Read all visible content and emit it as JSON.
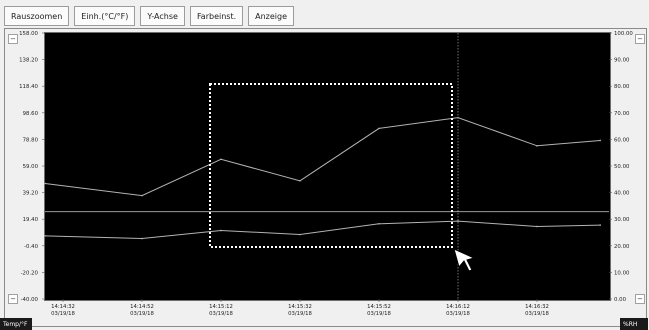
{
  "toolbar": {
    "zoom_out": "Rauszoomen",
    "units": "Einh.(°C/°F)",
    "y_axis": "Y-Achse",
    "color_settings": "Farbeinst.",
    "display": "Anzeige"
  },
  "left_axis": {
    "ticks": [
      "158.00",
      "138.20",
      "118.40",
      "98.60",
      "78.80",
      "59.00",
      "39.20",
      "19.40",
      "-0.40",
      "-20.20",
      "-40.00"
    ]
  },
  "right_axis": {
    "ticks": [
      "100.00",
      "90.00",
      "80.00",
      "70.00",
      "60.00",
      "50.00",
      "40.00",
      "30.00",
      "20.00",
      "10.00",
      "0.00"
    ]
  },
  "x_axis": {
    "ticks": [
      {
        "time": "14:14:32",
        "date": "03/19/18"
      },
      {
        "time": "14:14:52",
        "date": "03/19/18"
      },
      {
        "time": "14:15:12",
        "date": "03/19/18"
      },
      {
        "time": "14:15:32",
        "date": "03/19/18"
      },
      {
        "time": "14:15:52",
        "date": "03/19/18"
      },
      {
        "time": "14:16:12",
        "date": "03/19/18"
      },
      {
        "time": "14:16:32",
        "date": "03/19/18"
      }
    ]
  },
  "chart_data": {
    "type": "line",
    "y_left_range": [
      -40.0,
      158.0
    ],
    "y_right_range": [
      0.0,
      100.0
    ],
    "series": [
      {
        "values": [
          {
            "x": "14:14:22",
            "y": 46.0
          },
          {
            "x": "14:14:52",
            "y": 37.0
          },
          {
            "x": "14:15:12",
            "y": 64.0
          },
          {
            "x": "14:15:32",
            "y": 48.0
          },
          {
            "x": "14:15:52",
            "y": 87.0
          },
          {
            "x": "14:16:12",
            "y": 95.0
          },
          {
            "x": "14:16:32",
            "y": 74.0
          },
          {
            "x": "14:16:48",
            "y": 78.0
          }
        ]
      },
      {
        "values": [
          {
            "x": "14:14:22",
            "y": 7.0
          },
          {
            "x": "14:14:52",
            "y": 5.0
          },
          {
            "x": "14:15:12",
            "y": 11.0
          },
          {
            "x": "14:15:32",
            "y": 8.0
          },
          {
            "x": "14:15:52",
            "y": 16.0
          },
          {
            "x": "14:16:12",
            "y": 18.0
          },
          {
            "x": "14:16:32",
            "y": 14.0
          },
          {
            "x": "14:16:48",
            "y": 15.0
          }
        ]
      }
    ],
    "reference_line": {
      "y": 25.0
    }
  },
  "status": {
    "left": "Temp/°F",
    "right": "%RH"
  },
  "colors": {
    "plot_bg": "#000000",
    "series": "#b3b3b3",
    "selection": "#ffffff"
  }
}
